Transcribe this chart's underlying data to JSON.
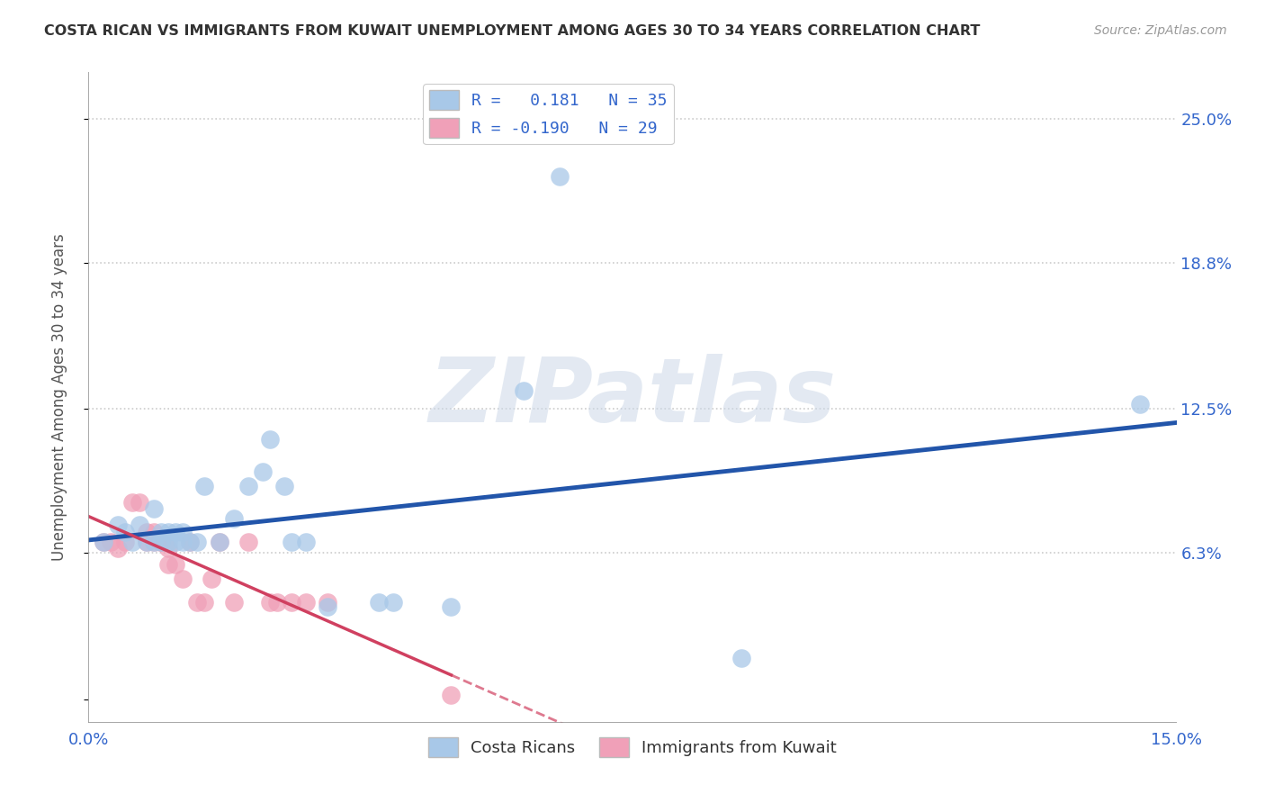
{
  "title": "COSTA RICAN VS IMMIGRANTS FROM KUWAIT UNEMPLOYMENT AMONG AGES 30 TO 34 YEARS CORRELATION CHART",
  "source": "Source: ZipAtlas.com",
  "ylabel": "Unemployment Among Ages 30 to 34 years",
  "xlim": [
    0.0,
    0.15
  ],
  "ylim": [
    -0.01,
    0.27
  ],
  "yticks": [
    0.0,
    0.063,
    0.125,
    0.188,
    0.25
  ],
  "ytick_labels": [
    "",
    "6.3%",
    "12.5%",
    "18.8%",
    "25.0%"
  ],
  "xticks": [
    0.0,
    0.025,
    0.05,
    0.075,
    0.1,
    0.125,
    0.15
  ],
  "xtick_labels": [
    "0.0%",
    "",
    "",
    "",
    "",
    "",
    "15.0%"
  ],
  "blue_color": "#a8c8e8",
  "pink_color": "#f0a0b8",
  "blue_line_color": "#2255aa",
  "pink_line_color": "#d04060",
  "costa_rica_x": [
    0.002,
    0.004,
    0.005,
    0.006,
    0.007,
    0.008,
    0.009,
    0.009,
    0.01,
    0.01,
    0.011,
    0.011,
    0.012,
    0.012,
    0.013,
    0.013,
    0.014,
    0.015,
    0.016,
    0.018,
    0.02,
    0.022,
    0.024,
    0.025,
    0.027,
    0.028,
    0.03,
    0.033,
    0.04,
    0.042,
    0.05,
    0.06,
    0.065,
    0.09,
    0.145
  ],
  "costa_rica_y": [
    0.068,
    0.075,
    0.072,
    0.068,
    0.075,
    0.068,
    0.082,
    0.068,
    0.068,
    0.072,
    0.068,
    0.072,
    0.072,
    0.068,
    0.068,
    0.072,
    0.068,
    0.068,
    0.092,
    0.068,
    0.078,
    0.092,
    0.098,
    0.112,
    0.092,
    0.068,
    0.068,
    0.04,
    0.042,
    0.042,
    0.04,
    0.133,
    0.225,
    0.018,
    0.127
  ],
  "kuwait_x": [
    0.002,
    0.003,
    0.004,
    0.005,
    0.006,
    0.007,
    0.008,
    0.008,
    0.009,
    0.009,
    0.01,
    0.01,
    0.011,
    0.011,
    0.012,
    0.013,
    0.014,
    0.015,
    0.016,
    0.017,
    0.018,
    0.02,
    0.022,
    0.025,
    0.026,
    0.028,
    0.03,
    0.033,
    0.05
  ],
  "kuwait_y": [
    0.068,
    0.068,
    0.065,
    0.068,
    0.085,
    0.085,
    0.068,
    0.072,
    0.068,
    0.072,
    0.068,
    0.068,
    0.065,
    0.058,
    0.058,
    0.052,
    0.068,
    0.042,
    0.042,
    0.052,
    0.068,
    0.042,
    0.068,
    0.042,
    0.042,
    0.042,
    0.042,
    0.042,
    0.002
  ],
  "watermark": "ZIPatlas",
  "background_color": "#ffffff",
  "grid_color": "#cccccc"
}
